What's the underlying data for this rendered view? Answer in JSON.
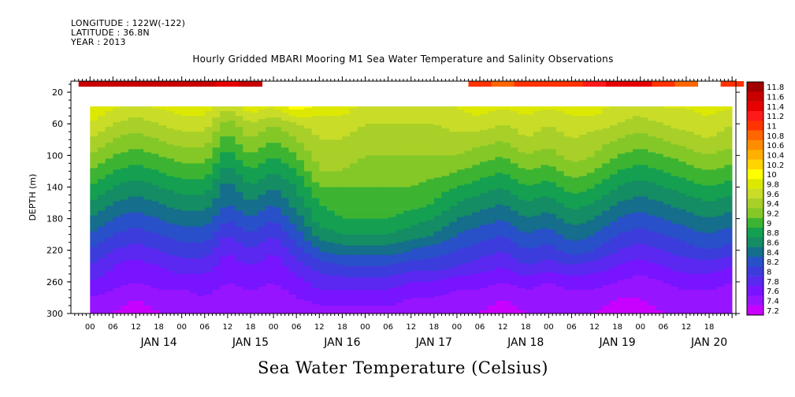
{
  "header": {
    "longitude": "LONGITUDE : 122W(-122)",
    "latitude": "LATITUDE : 36.8N",
    "year": "YEAR : 2013"
  },
  "chart_data": {
    "type": "heatmap",
    "title": "Hourly Gridded MBARI Mooring M1 Sea Water Temperature and Salinity Observations",
    "subtitle": "Sea Water Temperature (Celsius)",
    "ylabel": "DEPTH (m)",
    "y_ticks": [
      20,
      60,
      100,
      140,
      180,
      220,
      260,
      300
    ],
    "y_range": [
      6,
      300
    ],
    "y_inverted": true,
    "x_tick_labels": [
      "00",
      "06",
      "12",
      "18",
      "00",
      "06",
      "12",
      "18",
      "00",
      "06",
      "12",
      "18",
      "00",
      "06",
      "12",
      "18",
      "00",
      "06",
      "12",
      "18",
      "00",
      "06",
      "12",
      "18",
      "00",
      "06",
      "12",
      "18"
    ],
    "x_day_labels": [
      "JAN 14",
      "JAN 15",
      "JAN 16",
      "JAN 17",
      "JAN 18",
      "JAN 19",
      "JAN 20"
    ],
    "x_range_hours": [
      -11,
      163
    ],
    "colorbar_levels": [
      "11.8",
      "11.6",
      "11.4",
      "11.2",
      "11",
      "10.8",
      "10.6",
      "10.4",
      "10.2",
      "10",
      "9.8",
      "9.6",
      "9.4",
      "9.2",
      "9",
      "8.8",
      "8.6",
      "8.4",
      "8.2",
      "8",
      "7.8",
      "7.6",
      "7.4",
      "7.2"
    ],
    "colorbar_colors": [
      "#a00000",
      "#c80000",
      "#e60000",
      "#ff1a1a",
      "#ff3300",
      "#ff6600",
      "#ff8c00",
      "#ffb000",
      "#ffd400",
      "#ffff00",
      "#dde800",
      "#c8dc28",
      "#a8d028",
      "#84c828",
      "#3cb432",
      "#14a050",
      "#148c64",
      "#146e8c",
      "#2850c8",
      "#3c3cdc",
      "#5a28f0",
      "#7814ff",
      "#9614ff",
      "#c800ff"
    ],
    "data_depths": [
      10,
      40,
      60,
      80,
      100,
      120,
      140,
      160,
      180,
      200,
      220,
      240,
      260,
      280,
      300
    ],
    "data_times": [
      -6,
      0,
      6,
      12,
      18,
      24,
      30,
      36,
      42,
      48,
      54,
      60,
      66,
      72,
      78,
      84,
      90,
      96,
      102,
      108,
      114,
      120,
      126,
      132,
      138,
      144,
      150,
      156,
      162
    ],
    "surface_series": [
      11.7,
      11.7,
      11.6,
      11.6,
      11.5,
      11.5,
      11.4,
      11.5,
      null,
      null,
      null,
      null,
      null,
      null,
      null,
      null,
      null,
      10.9,
      10.8,
      10.9,
      11.0,
      11.0,
      11.2,
      11.4,
      11.3,
      11.0,
      10.8,
      null,
      10.9
    ],
    "profile_values": [
      [
        10.4,
        10.3,
        10.2,
        10.2,
        10.0,
        10.4,
        10.0,
        10.3,
        10.1,
        10.2,
        10.1,
        10.1,
        10.0,
        10.0,
        10.0,
        10.0,
        9.9,
        9.9,
        9.9,
        10.0,
        10.0,
        10.0,
        10.0,
        10.0,
        10.0,
        10.0,
        10.0,
        10.0,
        10.2
      ],
      [
        9.9,
        9.7,
        9.6,
        9.7,
        9.8,
        9.8,
        9.5,
        9.8,
        9.7,
        10.0,
        9.8,
        9.8,
        9.6,
        9.6,
        9.6,
        9.6,
        9.7,
        9.8,
        9.7,
        9.8,
        9.7,
        9.8,
        9.8,
        9.6,
        9.6,
        9.7,
        9.7,
        9.8,
        9.7
      ],
      [
        9.7,
        9.5,
        9.4,
        9.5,
        9.6,
        9.6,
        9.2,
        9.5,
        9.3,
        9.5,
        9.6,
        9.6,
        9.5,
        9.5,
        9.5,
        9.5,
        9.6,
        9.6,
        9.5,
        9.6,
        9.5,
        9.6,
        9.6,
        9.5,
        9.4,
        9.5,
        9.6,
        9.6,
        9.5
      ],
      [
        9.5,
        9.3,
        9.2,
        9.3,
        9.4,
        9.4,
        9.0,
        9.3,
        9.1,
        9.3,
        9.5,
        9.5,
        9.4,
        9.4,
        9.4,
        9.4,
        9.4,
        9.4,
        9.3,
        9.5,
        9.4,
        9.5,
        9.4,
        9.3,
        9.2,
        9.3,
        9.4,
        9.5,
        9.4
      ],
      [
        9.3,
        9.1,
        9.0,
        9.1,
        9.2,
        9.2,
        8.8,
        9.1,
        8.9,
        9.1,
        9.4,
        9.4,
        9.3,
        9.3,
        9.3,
        9.3,
        9.3,
        9.2,
        9.1,
        9.3,
        9.2,
        9.4,
        9.3,
        9.1,
        9.0,
        9.1,
        9.2,
        9.3,
        9.2
      ],
      [
        9.1,
        8.9,
        8.8,
        8.9,
        9.0,
        9.0,
        8.6,
        8.9,
        8.7,
        8.9,
        9.3,
        9.3,
        9.2,
        9.2,
        9.2,
        9.2,
        9.1,
        9.0,
        8.9,
        9.1,
        9.0,
        9.2,
        9.1,
        8.9,
        8.8,
        8.9,
        9.0,
        9.1,
        9.0
      ],
      [
        8.9,
        8.7,
        8.6,
        8.7,
        8.8,
        8.8,
        8.4,
        8.7,
        8.5,
        8.7,
        9.1,
        9.1,
        9.1,
        9.1,
        9.1,
        9.0,
        8.9,
        8.8,
        8.7,
        8.9,
        8.8,
        9.0,
        8.9,
        8.7,
        8.6,
        8.7,
        8.8,
        8.9,
        8.8
      ],
      [
        8.7,
        8.5,
        8.4,
        8.5,
        8.6,
        8.6,
        8.3,
        8.5,
        8.3,
        8.6,
        8.9,
        9.0,
        9.0,
        9.0,
        9.0,
        8.9,
        8.7,
        8.6,
        8.5,
        8.7,
        8.6,
        8.8,
        8.7,
        8.5,
        8.4,
        8.5,
        8.6,
        8.7,
        8.6
      ],
      [
        8.5,
        8.3,
        8.2,
        8.3,
        8.4,
        8.4,
        8.1,
        8.3,
        8.1,
        8.4,
        8.8,
        8.9,
        8.9,
        8.9,
        8.8,
        8.7,
        8.5,
        8.4,
        8.3,
        8.5,
        8.4,
        8.6,
        8.5,
        8.3,
        8.2,
        8.3,
        8.4,
        8.5,
        8.4
      ],
      [
        8.3,
        8.1,
        8.0,
        8.1,
        8.2,
        8.2,
        7.9,
        8.1,
        7.9,
        8.2,
        8.6,
        8.7,
        8.7,
        8.7,
        8.6,
        8.5,
        8.3,
        8.2,
        8.1,
        8.3,
        8.2,
        8.4,
        8.3,
        8.1,
        8.0,
        8.1,
        8.2,
        8.3,
        8.2
      ],
      [
        8.1,
        7.9,
        7.8,
        7.9,
        8.0,
        8.0,
        7.7,
        7.9,
        7.7,
        8.0,
        8.3,
        8.4,
        8.4,
        8.4,
        8.3,
        8.2,
        8.1,
        8.0,
        7.9,
        8.1,
        8.0,
        8.2,
        8.1,
        7.9,
        7.8,
        7.9,
        8.0,
        8.1,
        8.0
      ],
      [
        7.9,
        7.7,
        7.6,
        7.7,
        7.8,
        7.8,
        7.6,
        7.7,
        7.6,
        7.8,
        8.0,
        8.1,
        8.1,
        8.1,
        8.0,
        8.0,
        7.9,
        7.8,
        7.7,
        7.9,
        7.8,
        7.9,
        7.8,
        7.7,
        7.6,
        7.7,
        7.8,
        7.8,
        7.7
      ],
      [
        7.7,
        7.6,
        7.5,
        7.6,
        7.6,
        7.6,
        7.5,
        7.6,
        7.5,
        7.6,
        7.8,
        7.8,
        7.8,
        7.8,
        7.7,
        7.7,
        7.6,
        7.6,
        7.5,
        7.6,
        7.5,
        7.6,
        7.6,
        7.5,
        7.4,
        7.5,
        7.6,
        7.6,
        7.5
      ],
      [
        7.5,
        7.4,
        7.3,
        7.4,
        7.4,
        7.5,
        7.4,
        7.4,
        7.4,
        7.5,
        7.6,
        7.6,
        7.6,
        7.6,
        7.5,
        7.5,
        7.4,
        7.4,
        7.3,
        7.4,
        7.4,
        7.4,
        7.4,
        7.3,
        7.3,
        7.4,
        7.4,
        7.4,
        7.4
      ],
      [
        7.4,
        7.3,
        7.2,
        7.3,
        7.3,
        7.3,
        7.3,
        7.3,
        7.3,
        7.3,
        7.4,
        7.4,
        7.4,
        7.4,
        7.4,
        7.4,
        7.3,
        7.3,
        7.2,
        7.3,
        7.3,
        7.3,
        7.3,
        7.2,
        7.2,
        7.3,
        7.3,
        7.3,
        7.3
      ]
    ]
  }
}
